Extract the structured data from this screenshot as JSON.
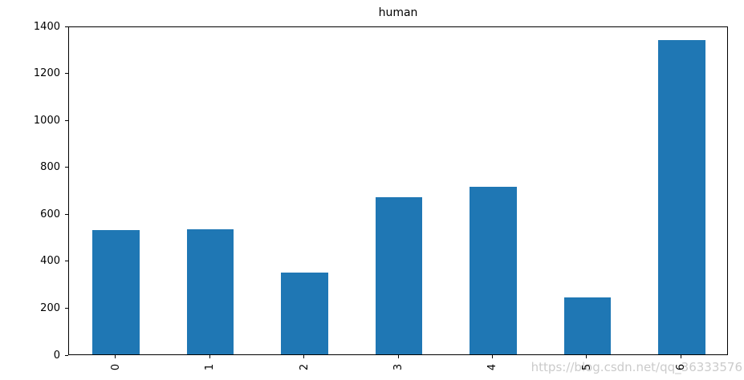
{
  "watermark": {
    "text": "https://blog.csdn.net/qq_36333576"
  },
  "chart_data": {
    "type": "bar",
    "title": "human",
    "categories": [
      "0",
      "1",
      "2",
      "3",
      "4",
      "5",
      "6"
    ],
    "values": [
      530,
      534,
      350,
      670,
      715,
      242,
      1340
    ],
    "xlabel": "",
    "ylabel": "",
    "ylim": [
      0,
      1400
    ],
    "yticks": [
      0,
      200,
      400,
      600,
      800,
      1000,
      1200,
      1400
    ],
    "x_tick_label_rotation": 90,
    "bar_color": "#1f77b4",
    "bar_relative_width": 0.5,
    "grid": false,
    "legend": "none",
    "spine_color": "#000000"
  }
}
